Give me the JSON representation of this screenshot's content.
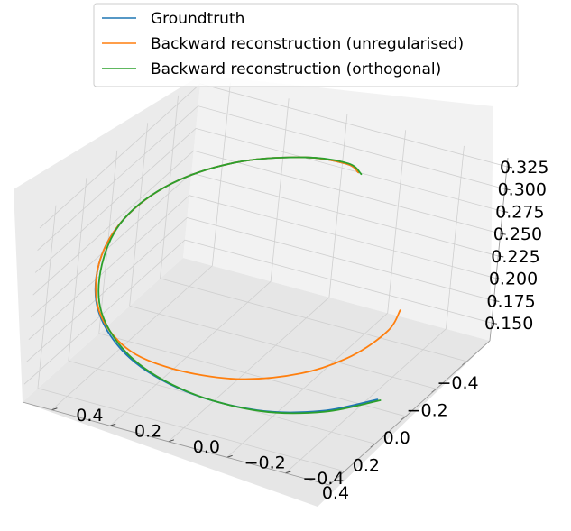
{
  "chart_data": {
    "type": "line",
    "projection": "3d",
    "grid": true,
    "legend_placement": "top-center",
    "xlim": [
      -0.55,
      0.5
    ],
    "ylim": [
      -0.55,
      0.5
    ],
    "zlim": [
      0.13,
      0.335
    ],
    "x_ticks": [
      "−0.4",
      "−0.2",
      "0.0",
      "0.2",
      "0.4"
    ],
    "y_ticks": [
      "−0.4",
      "−0.2",
      "0.0",
      "0.2",
      "0.4"
    ],
    "z_ticks": [
      "0.150",
      "0.175",
      "0.200",
      "0.225",
      "0.250",
      "0.275",
      "0.300",
      "0.325"
    ],
    "series": [
      {
        "name": "Groundtruth",
        "color": "#1f77b4",
        "points": [
          {
            "x": 0.0,
            "y": -0.45,
            "z": 0.14
          },
          {
            "x": 0.2,
            "y": -0.36,
            "z": 0.15
          },
          {
            "x": 0.36,
            "y": -0.22,
            "z": 0.163
          },
          {
            "x": 0.45,
            "y": -0.02,
            "z": 0.18
          },
          {
            "x": 0.45,
            "y": 0.18,
            "z": 0.2
          },
          {
            "x": 0.36,
            "y": 0.34,
            "z": 0.223
          },
          {
            "x": 0.2,
            "y": 0.43,
            "z": 0.245
          },
          {
            "x": 0.01,
            "y": 0.45,
            "z": 0.264
          },
          {
            "x": -0.18,
            "y": 0.39,
            "z": 0.28
          },
          {
            "x": -0.33,
            "y": 0.25,
            "z": 0.293
          },
          {
            "x": -0.41,
            "y": 0.06,
            "z": 0.303
          },
          {
            "x": -0.41,
            "y": -0.08,
            "z": 0.308
          },
          {
            "x": -0.37,
            "y": -0.14,
            "z": 0.31
          }
        ]
      },
      {
        "name": "Backward reconstruction (unregularised)",
        "color": "#ff7f0e",
        "points": [
          {
            "x": -0.38,
            "y": -0.32,
            "z": 0.17
          },
          {
            "x": -0.22,
            "y": -0.36,
            "z": 0.175
          },
          {
            "x": 0.0,
            "y": -0.35,
            "z": 0.18
          },
          {
            "x": 0.2,
            "y": -0.28,
            "z": 0.185
          },
          {
            "x": 0.36,
            "y": -0.14,
            "z": 0.191
          },
          {
            "x": 0.44,
            "y": 0.04,
            "z": 0.199
          },
          {
            "x": 0.44,
            "y": 0.2,
            "z": 0.208
          },
          {
            "x": 0.36,
            "y": 0.34,
            "z": 0.225
          },
          {
            "x": 0.2,
            "y": 0.43,
            "z": 0.245
          },
          {
            "x": 0.01,
            "y": 0.45,
            "z": 0.264
          },
          {
            "x": -0.18,
            "y": 0.39,
            "z": 0.28
          },
          {
            "x": -0.33,
            "y": 0.25,
            "z": 0.293
          },
          {
            "x": -0.41,
            "y": 0.06,
            "z": 0.303
          },
          {
            "x": -0.41,
            "y": -0.08,
            "z": 0.308
          },
          {
            "x": -0.37,
            "y": -0.14,
            "z": 0.31
          }
        ]
      },
      {
        "name": "Backward reconstruction (orthogonal)",
        "color": "#2ca02c",
        "points": [
          {
            "x": 0.0,
            "y": -0.46,
            "z": 0.14
          },
          {
            "x": 0.2,
            "y": -0.37,
            "z": 0.15
          },
          {
            "x": 0.36,
            "y": -0.23,
            "z": 0.163
          },
          {
            "x": 0.45,
            "y": -0.03,
            "z": 0.18
          },
          {
            "x": 0.45,
            "y": 0.17,
            "z": 0.2
          },
          {
            "x": 0.36,
            "y": 0.33,
            "z": 0.223
          },
          {
            "x": 0.2,
            "y": 0.42,
            "z": 0.245
          },
          {
            "x": 0.01,
            "y": 0.45,
            "z": 0.264
          },
          {
            "x": -0.18,
            "y": 0.39,
            "z": 0.28
          },
          {
            "x": -0.33,
            "y": 0.25,
            "z": 0.293
          },
          {
            "x": -0.41,
            "y": 0.06,
            "z": 0.303
          },
          {
            "x": -0.42,
            "y": -0.08,
            "z": 0.307
          },
          {
            "x": -0.37,
            "y": -0.15,
            "z": 0.309
          }
        ]
      }
    ]
  }
}
